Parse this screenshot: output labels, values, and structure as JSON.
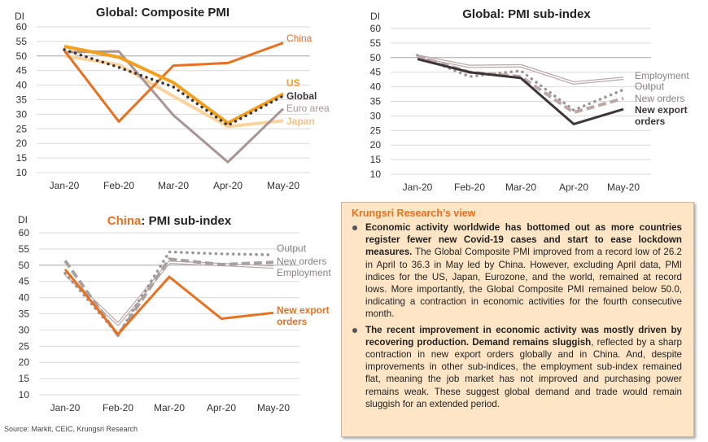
{
  "charts": {
    "global_composite": {
      "title": "Global: Composite PMI",
      "unit_label": "DI"
    },
    "global_sub": {
      "title": "Global: PMI sub-index",
      "unit_label": "DI"
    },
    "china_sub": {
      "title_highlight": "China",
      "title_rest": ": PMI sub-index",
      "unit_label": "DI"
    }
  },
  "source": "Source: Markit, CEIC, Krungsri Research",
  "view": {
    "title": "Krungsri Research’s view",
    "items": [
      {
        "bold": "Economic activity worldwide has bottomed out as more countries register fewer new Covid-19 cases and start to ease lockdown measures.",
        "normal": " The Global Composite PMI improved from a record low of 26.2 in April to 36.3 in May led by China. However, excluding April data, PMI indices for the US, Japan, Eurozone, and the world, remained at record lows. More importantly, the Global Composite PMI remained below 50.0, indicating a contraction in economic activities for the fourth consecutive month."
      },
      {
        "bold": "The recent improvement in economic activity was mostly driven by recovering production. Demand remains sluggish",
        "normal": ", reflected by a sharp contraction in new export orders globally and in China. And, despite improvements in other sub-indices, the employment sub-index remained flat, meaning the job market has not improved and purchasing power remains weak. These suggest global demand and trade would remain sluggish for an extended period."
      }
    ]
  },
  "chart_data": [
    {
      "type": "line",
      "title": "Global: Composite PMI",
      "xlabel": "",
      "ylabel": "DI",
      "categories": [
        "Jan-20",
        "Feb-20",
        "Mar-20",
        "Apr-20",
        "May-20"
      ],
      "ylim": [
        10,
        60
      ],
      "yticks": [
        10,
        15,
        20,
        25,
        30,
        35,
        40,
        45,
        50,
        55,
        60
      ],
      "grid": true,
      "legend": "inline-right",
      "series": [
        {
          "name": "Japan",
          "values": [
            50.1,
            47.0,
            36.2,
            25.8,
            27.8
          ],
          "color": "#fbd39d",
          "style": "solid-thick",
          "label_bold": true
        },
        {
          "name": "Euro area",
          "values": [
            51.3,
            51.6,
            29.7,
            13.6,
            31.9
          ],
          "color": "#a89596",
          "style": "solid",
          "label_bold": false
        },
        {
          "name": "China",
          "values": [
            51.9,
            27.5,
            46.7,
            47.6,
            54.5
          ],
          "color": "#e8701f",
          "style": "solid",
          "label_bold": false
        },
        {
          "name": "US",
          "values": [
            53.3,
            49.6,
            40.9,
            27.0,
            37.0
          ],
          "color": "#f2a01e",
          "style": "solid-thick",
          "label_bold": true
        },
        {
          "name": "Global",
          "values": [
            52.2,
            46.1,
            39.4,
            26.2,
            36.3
          ],
          "color": "#3d3538",
          "style": "dotted",
          "label_bold": true
        }
      ]
    },
    {
      "type": "line",
      "title": "Global: PMI sub-index",
      "xlabel": "",
      "ylabel": "DI",
      "categories": [
        "Jan-20",
        "Feb-20",
        "Mar-20",
        "Apr-20",
        "May-20"
      ],
      "ylim": [
        10,
        60
      ],
      "yticks": [
        10,
        15,
        20,
        25,
        30,
        35,
        40,
        45,
        50,
        55,
        60
      ],
      "grid": true,
      "legend": "inline-right",
      "series": [
        {
          "name": "Employment",
          "values": [
            50.5,
            47.0,
            47.2,
            41.3,
            42.9
          ],
          "color": "#b9a6a6",
          "style": "double",
          "label_bold": false
        },
        {
          "name": "Output",
          "values": [
            50.8,
            43.5,
            45.5,
            32.0,
            39.0
          ],
          "color": "#9c9393",
          "style": "dotted",
          "label_bold": false
        },
        {
          "name": "New orders",
          "values": [
            50.5,
            45.0,
            43.5,
            31.2,
            36.0
          ],
          "color": "#bba7a7",
          "style": "dashed",
          "label_bold": false
        },
        {
          "name": "New export orders",
          "values": [
            49.5,
            45.0,
            43.0,
            27.2,
            32.3
          ],
          "color": "#3d3538",
          "style": "solid",
          "label_bold": true
        }
      ]
    },
    {
      "type": "line",
      "title": "China: PMI sub-index",
      "xlabel": "",
      "ylabel": "DI",
      "categories": [
        "Jan-20",
        "Feb-20",
        "Mar-20",
        "Apr-20",
        "May-20"
      ],
      "ylim": [
        10,
        60
      ],
      "yticks": [
        10,
        15,
        20,
        25,
        30,
        35,
        40,
        45,
        50,
        55,
        60
      ],
      "grid": true,
      "legend": "inline-right",
      "series": [
        {
          "name": "Employment",
          "values": [
            47.5,
            31.8,
            50.9,
            50.2,
            49.4
          ],
          "color": "#b9a6a6",
          "style": "double",
          "label_bold": false
        },
        {
          "name": "Output",
          "values": [
            47.5,
            28.5,
            54.1,
            53.5,
            53.2
          ],
          "color": "#9c9393",
          "style": "dotted",
          "label_bold": false
        },
        {
          "name": "New orders",
          "values": [
            51.4,
            28.3,
            51.9,
            50.2,
            50.9
          ],
          "color": "#a9a0a0",
          "style": "dashed",
          "label_bold": false
        },
        {
          "name": "New export orders",
          "values": [
            48.7,
            28.7,
            46.4,
            33.5,
            35.3
          ],
          "color": "#e8701f",
          "style": "solid",
          "label_bold": true
        }
      ]
    }
  ]
}
